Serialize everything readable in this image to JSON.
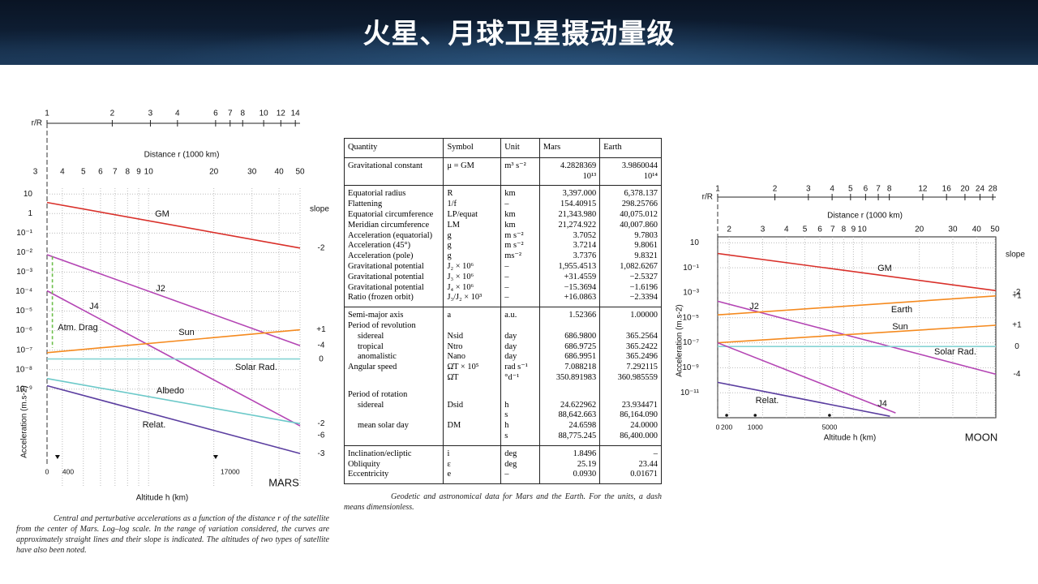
{
  "header": {
    "title": "火星、月球卫星摄动量级"
  },
  "chart_data": [
    {
      "type": "line",
      "title": "MARS",
      "x_label": "Distance r (1000 km)",
      "x2_label": "r/R",
      "y_label": "Acceleration (m.s-2)",
      "h_label": "Altitude h (km)",
      "slope_title": "slope",
      "log_x": true,
      "log_y": true,
      "grid": true,
      "xlim": [
        3.4,
        50
      ],
      "xticks": [
        3,
        4,
        5,
        6,
        7,
        8,
        9,
        10,
        20,
        30,
        40,
        50
      ],
      "x2lim": [
        1,
        14.72
      ],
      "x2ticks": [
        1,
        2,
        3,
        4,
        6,
        7,
        8,
        10,
        12,
        14
      ],
      "ylim": [
        1e-14,
        20
      ],
      "yticks": [
        10,
        1,
        {
          "value": 0.1,
          "label": "10⁻¹"
        },
        {
          "value": 0.01,
          "label": "10⁻²"
        },
        {
          "value": 0.001,
          "label": "10⁻³"
        },
        {
          "value": 0.0001,
          "label": "10⁻⁴"
        },
        {
          "value": 1e-05,
          "label": "10⁻⁵"
        },
        {
          "value": 1e-06,
          "label": "10⁻⁶"
        },
        {
          "value": 1e-07,
          "label": "10⁻⁷"
        },
        {
          "value": 1e-08,
          "label": "10⁻⁸"
        },
        {
          "value": 1e-09,
          "label": "10⁻⁹"
        }
      ],
      "altitude_ticks": [
        0,
        400,
        17000
      ],
      "series": [
        {
          "name": "GM",
          "color": "#d9302a",
          "x": [
            3.4,
            50
          ],
          "values": [
            3.7,
            0.017
          ],
          "slope": "-2"
        },
        {
          "name": "J2",
          "color": "#b445b4",
          "x": [
            3.4,
            50
          ],
          "values": [
            0.0078,
            1.7e-07
          ],
          "slope": "-4"
        },
        {
          "name": "J4",
          "color": "#b445b4",
          "x": [
            3.4,
            50
          ],
          "values": [
            0.00011,
            1.3e-11
          ],
          "slope": "-6"
        },
        {
          "name": "Atm. Drag",
          "color": "#6cbf4a",
          "style": "dashed",
          "x": [
            3.6,
            3.6
          ],
          "values": [
            0.0063,
            1.3e-07
          ]
        },
        {
          "name": "Sun",
          "color": "#f58a1f",
          "x": [
            3.4,
            50
          ],
          "values": [
            7.4e-08,
            1.1e-06
          ],
          "slope": "+1"
        },
        {
          "name": "Solar Rad.",
          "color": "#86d4d4",
          "x": [
            3.4,
            50
          ],
          "values": [
            3.5e-08,
            3.5e-08
          ],
          "slope": "0"
        },
        {
          "name": "Albedo",
          "color": "#6cc9c9",
          "x": [
            3.4,
            50
          ],
          "values": [
            3.5e-09,
            1.7e-11
          ],
          "slope": "-2"
        },
        {
          "name": "Relat.",
          "color": "#5b3ea0",
          "x": [
            3.4,
            50
          ],
          "values": [
            1.5e-09,
            5e-13
          ],
          "slope": "-3"
        }
      ]
    },
    {
      "type": "line",
      "title": "MOON",
      "x_label": "Distance r (1000 km)",
      "x2_label": "r/R",
      "y_label": "Acceleration (m.s-2)",
      "h_label": "Altitude h (km)",
      "slope_title": "slope",
      "log_x": true,
      "log_y": true,
      "grid": true,
      "xlim": [
        1.74,
        50.5
      ],
      "xticks": [
        2,
        3,
        4,
        5,
        6,
        7,
        8,
        9,
        10,
        20,
        30,
        40,
        50
      ],
      "x2lim": [
        1,
        29.07
      ],
      "x2ticks": [
        1,
        2,
        3,
        4,
        5,
        6,
        7,
        8,
        12,
        16,
        20,
        24,
        28
      ],
      "ylim": [
        1e-13,
        30
      ],
      "yticks": [
        10,
        {
          "value": 0.1,
          "label": "10⁻¹"
        },
        {
          "value": 0.001,
          "label": "10⁻³"
        },
        {
          "value": 1e-05,
          "label": "10⁻⁵"
        },
        {
          "value": 1e-07,
          "label": "10⁻⁷"
        },
        {
          "value": 1e-09,
          "label": "10⁻⁹"
        },
        {
          "value": 1e-11,
          "label": "10⁻¹¹"
        }
      ],
      "altitude_ticks": [
        0,
        200,
        1000,
        5000
      ],
      "series": [
        {
          "name": "GM",
          "color": "#d9302a",
          "x": [
            1.74,
            50.5
          ],
          "values": [
            1.4,
            0.0015
          ],
          "slope": "-2"
        },
        {
          "name": "J2",
          "color": "#b445b4",
          "x": [
            1.74,
            50.5
          ],
          "values": [
            0.00021,
            3e-10
          ],
          "slope": "-4"
        },
        {
          "name": "Earth",
          "color": "#f58a1f",
          "x": [
            1.74,
            50.5
          ],
          "values": [
            1.7e-05,
            0.00056
          ],
          "slope": "+1"
        },
        {
          "name": "Sun",
          "color": "#f58a1f",
          "x": [
            1.74,
            50.5
          ],
          "values": [
            1e-07,
            2.5e-06
          ],
          "slope": "+1"
        },
        {
          "name": "Solar Rad.",
          "color": "#86d4d4",
          "x": [
            1.74,
            50.5
          ],
          "values": [
            5e-08,
            5e-08
          ],
          "slope": "0"
        },
        {
          "name": "J4",
          "color": "#b445b4",
          "x": [
            1.74,
            15
          ],
          "values": [
            1e-07,
            2.4e-13
          ]
        },
        {
          "name": "Relat.",
          "color": "#5b3ea0",
          "x": [
            1.74,
            14
          ],
          "values": [
            6.8e-11,
            1.3e-13
          ]
        }
      ]
    }
  ],
  "table": {
    "header": [
      "Quantity",
      "Symbol",
      "Unit",
      "Mars",
      "Earth"
    ],
    "groups": [
      [
        [
          "Gravitational constant",
          "μ = GM",
          "m³ s⁻²",
          "4.2828369\n10¹³",
          "3.9860044\n10¹⁴"
        ]
      ],
      [
        [
          "Equatorial radius",
          "R",
          "km",
          "3,397.000",
          "6,378.137"
        ],
        [
          "Flattening",
          "1/f",
          "–",
          "154.40915",
          "298.25766"
        ],
        [
          "Equatorial circumference",
          "LP/equat",
          "km",
          "21,343.980",
          "40,075.012"
        ],
        [
          "Meridian circumference",
          "LM",
          "km",
          "21,274.922",
          "40,007.860"
        ],
        [
          "Acceleration (equatorial)",
          "g",
          "m s⁻²",
          "3.7052",
          "9.7803"
        ],
        [
          "Acceleration (45°)",
          "g",
          "m s⁻²",
          "3.7214",
          "9.8061"
        ],
        [
          "Acceleration (pole)",
          "g",
          "ms⁻²",
          "3.7376",
          "9.8321"
        ],
        [
          "Gravitational potential",
          "J₂ × 10⁶",
          "–",
          "1,955.4513",
          "1,082.6267"
        ],
        [
          "Gravitational potential",
          "J₃ × 10⁶",
          "–",
          "+31.4559",
          "−2.5327"
        ],
        [
          "Gravitational potential",
          "J₄ × 10⁶",
          "–",
          "−15.3694",
          "−1.6196"
        ],
        [
          "Ratio (frozen orbit)",
          "J₃/J₂ × 10³",
          "–",
          "+16.0863",
          "−2.3394"
        ]
      ],
      [
        [
          "Semi-major axis",
          "a",
          "a.u.",
          "1.52366",
          "1.00000"
        ],
        [
          "Period of revolution",
          null,
          null,
          null,
          null
        ],
        [
          "sidereal",
          "Nsid",
          "day",
          "686.9800",
          "365.2564"
        ],
        [
          "tropical",
          "Ntro",
          "day",
          "686.9725",
          "365.2422"
        ],
        [
          "anomalistic",
          "Nano",
          "day",
          "686.9951",
          "365.2496"
        ],
        [
          "Angular speed",
          "Ω̇T × 10⁵",
          "rad s⁻¹",
          "7.088218",
          "7.292115"
        ],
        [
          null,
          "Ω̇T",
          "°d⁻¹",
          "350.891983",
          "360.985559"
        ],
        [
          "Period of rotation",
          null,
          null,
          null,
          null
        ],
        [
          "sidereal",
          "Dsid",
          "h",
          "24.622962",
          "23.934471"
        ],
        [
          null,
          null,
          "s",
          "88,642.663",
          "86,164.090"
        ],
        [
          "mean solar day",
          "DM",
          "h",
          "24.6598",
          "24.0000"
        ],
        [
          null,
          null,
          "s",
          "88,775.245",
          "86,400.000"
        ]
      ],
      [
        [
          "Inclination/ecliptic",
          "i",
          "deg",
          "1.8496",
          "–"
        ],
        [
          "Obliquity",
          "ε",
          "deg",
          "25.19",
          "23.44"
        ],
        [
          "Eccentricity",
          "e",
          "–",
          "0.0930",
          "0.01671"
        ]
      ]
    ]
  },
  "captions": {
    "chart": "Central and perturbative accelerations as a function of the distance r of the satellite from the center of Mars. Log–log scale. In the range of variation considered, the curves are approximately straight lines and their slope is indicated. The altitudes of two types of satellite have also been noted.",
    "table": "Geodetic and astronomical data for Mars and the Earth. For the units, a dash means dimensionless."
  }
}
